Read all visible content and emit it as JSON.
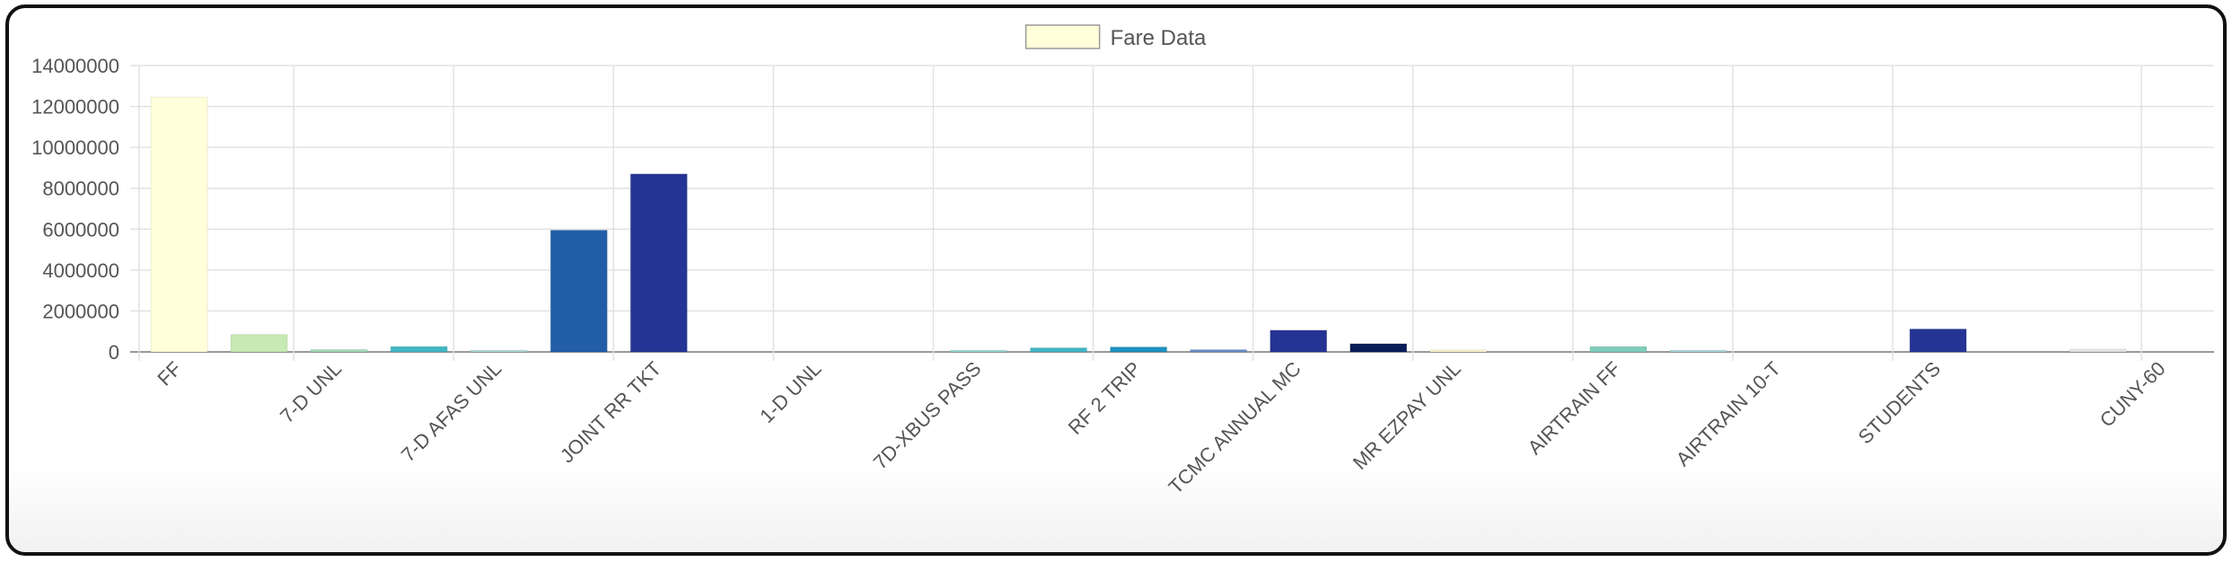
{
  "chart_data": {
    "type": "bar",
    "title": "",
    "xlabel": "",
    "ylabel": "",
    "ylim": [
      0,
      14000000
    ],
    "yticks": [
      0,
      2000000,
      4000000,
      6000000,
      8000000,
      10000000,
      12000000,
      14000000
    ],
    "grid": true,
    "legend": {
      "position": "top-center",
      "label": "Fare Data",
      "swatch_color": "#ffffd9"
    },
    "labeled_categories": [
      "FF",
      "7-D UNL",
      "7-D AFAS UNL",
      "JOINT RR TKT",
      "1-D UNL",
      "7D-XBUS PASS",
      "RF 2 TRIP",
      "TCMC ANNUAL MC",
      "MR EZPAY UNL",
      "AIRTRAIN FF",
      "AIRTRAIN 10-T",
      "STUDENTS",
      "CUNY-60"
    ],
    "series": [
      {
        "values": [
          12450000,
          850000,
          120000,
          260000,
          60000,
          5950000,
          8700000,
          0,
          0,
          0,
          20000,
          200000,
          240000,
          110000,
          1060000,
          400000,
          100000,
          0,
          260000,
          60000,
          0,
          0,
          1120000,
          0,
          140000
        ],
        "colors": [
          "#ffffd9",
          "#c7e9b4",
          "#a6dcba",
          "#41b6c4",
          "#b3dcd8",
          "#225ea8",
          "#253494",
          "#f0f0f0",
          "#f0f0f0",
          "#f0f0f0",
          "#9ed8d4",
          "#41b6c4",
          "#1d91c0",
          "#6a8fc7",
          "#253494",
          "#081d58",
          "#fff5d0",
          "#f0f0f0",
          "#7fcdbb",
          "#b0d8e0",
          "#f0f0f0",
          "#f0f0f0",
          "#253494",
          "#f0f0f0",
          "#e5e5e5"
        ]
      }
    ]
  }
}
